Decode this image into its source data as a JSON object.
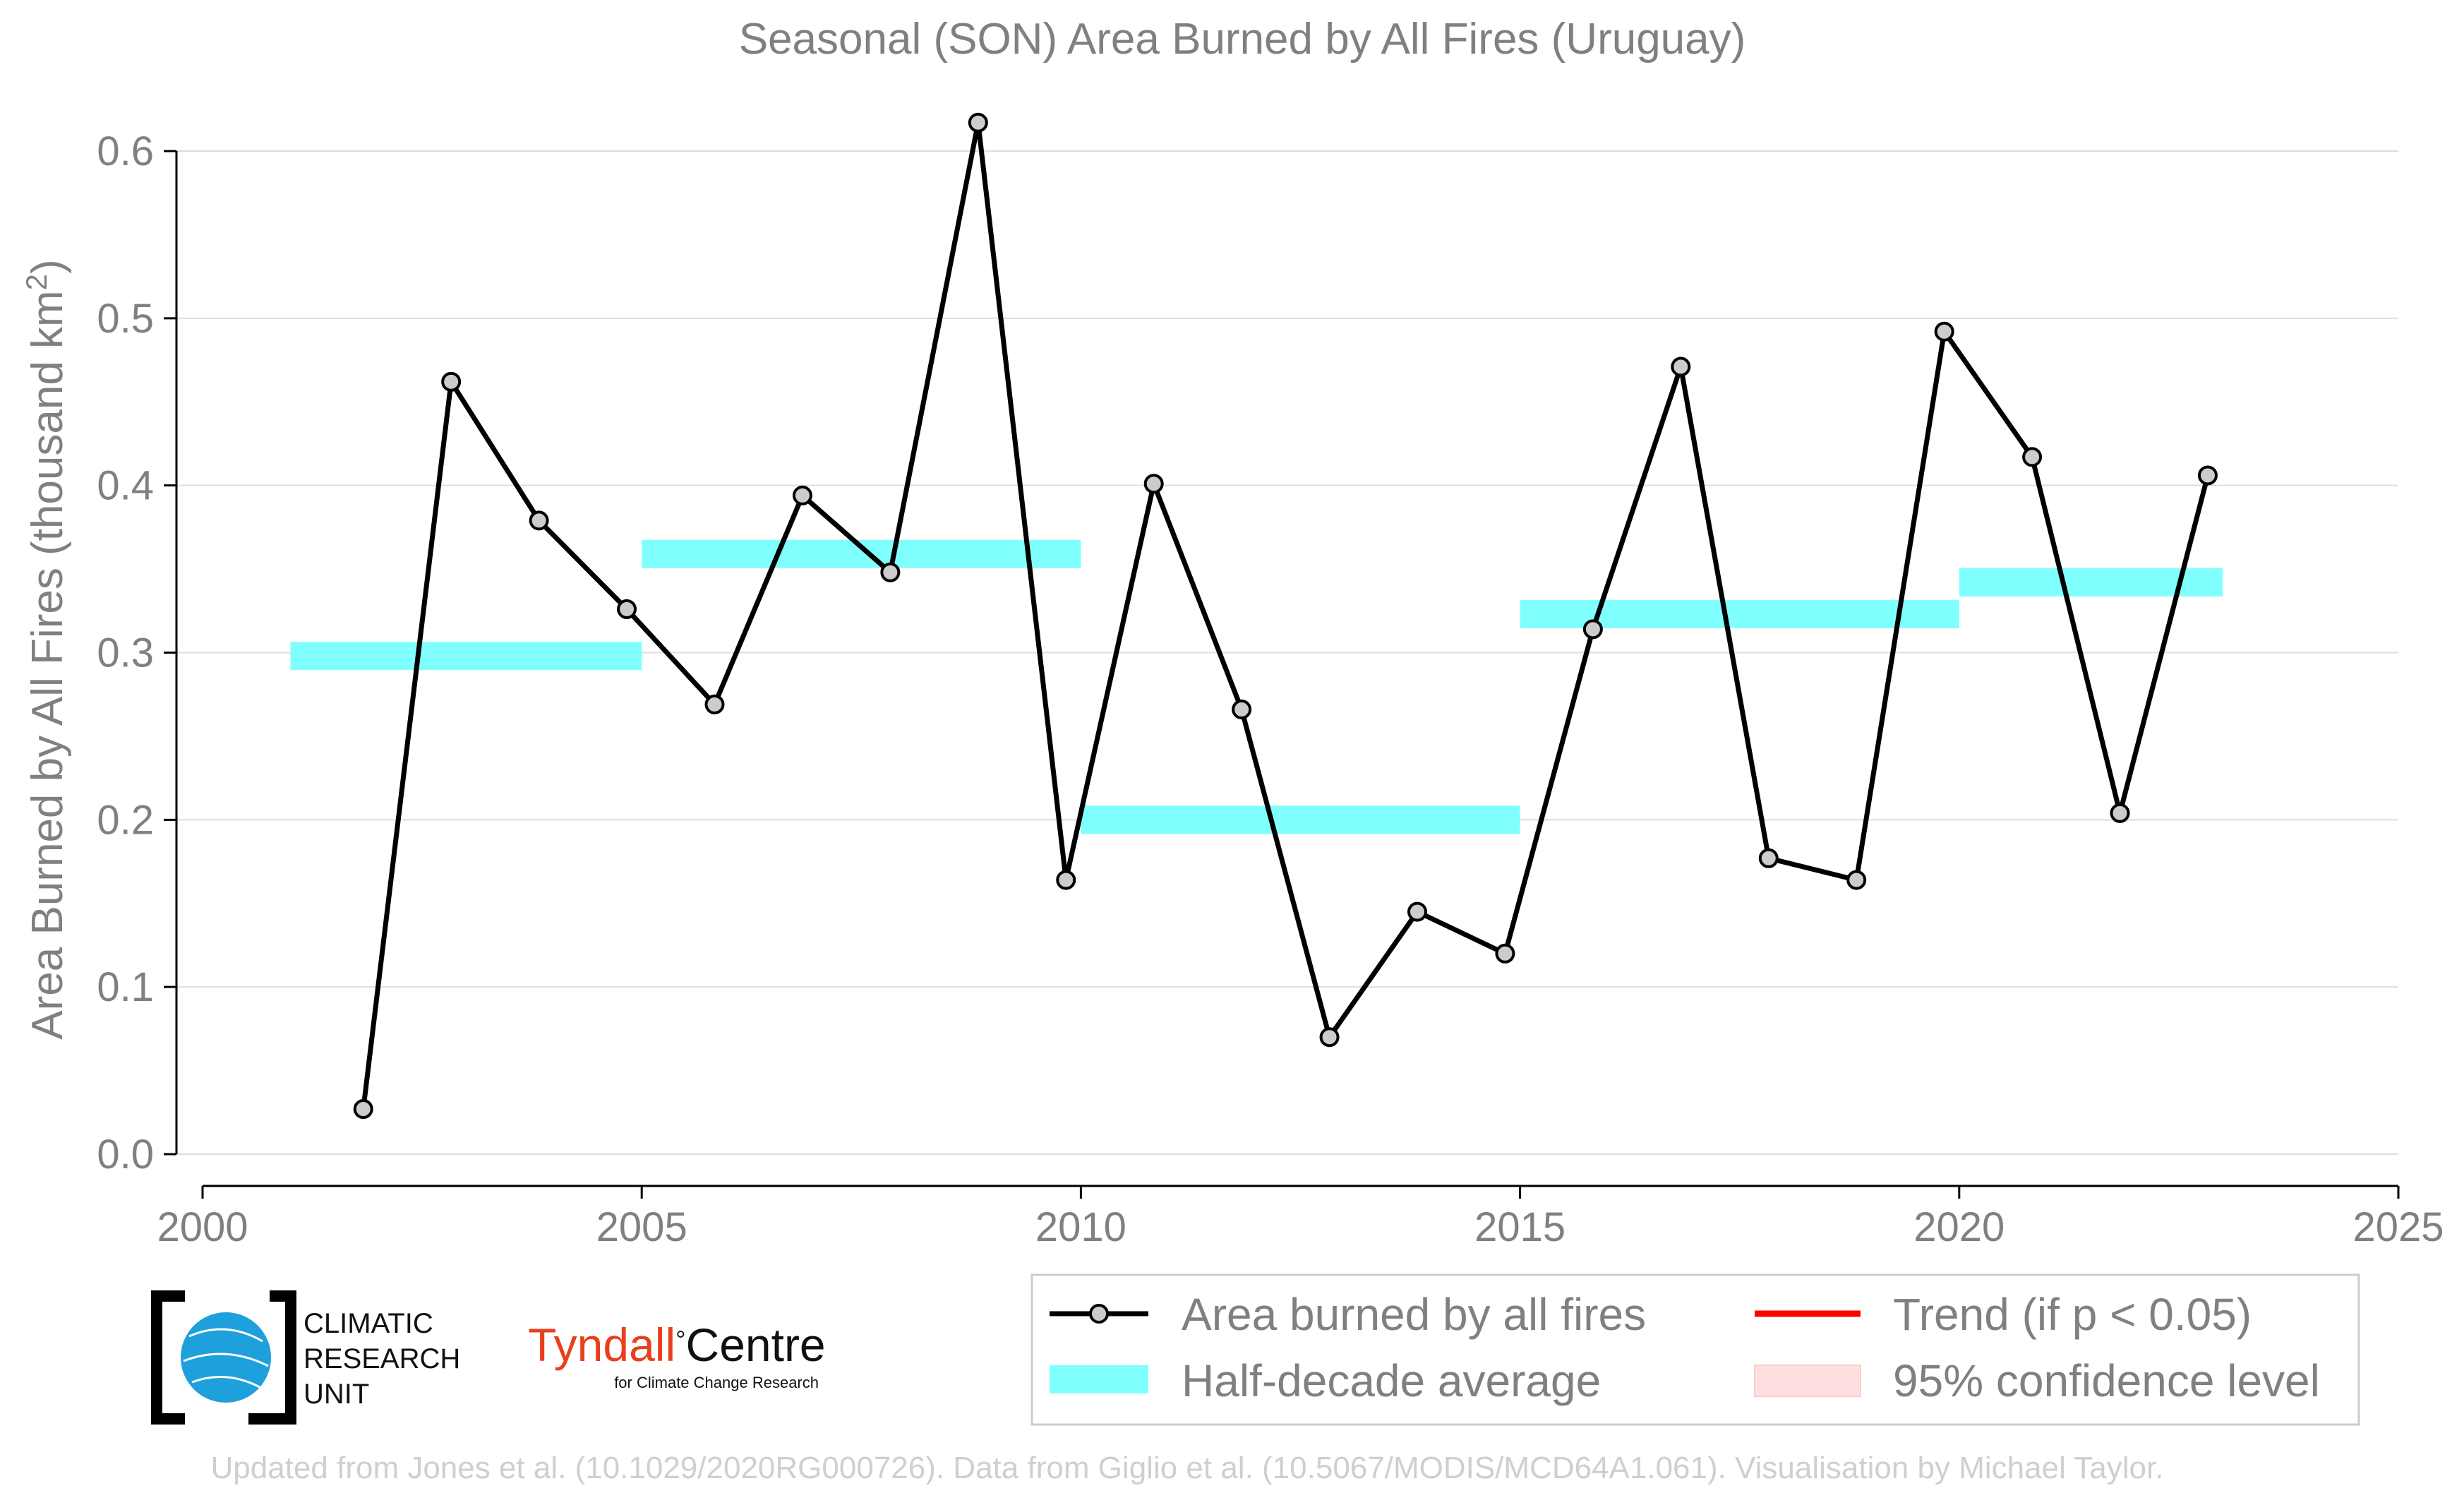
{
  "chart_data": {
    "type": "line",
    "title": "Seasonal (SON) Area Burned by All Fires (Uruguay)",
    "ylabel": "Area Burned by All Fires (thousand km",
    "ylabel_sup": "2",
    "ylabel_close": ")",
    "xlim": [
      2000,
      2025
    ],
    "ylim": [
      -0.03,
      0.64
    ],
    "x_ticks": [
      2000,
      2005,
      2010,
      2015,
      2020,
      2025
    ],
    "x_tick_labels": [
      "2000",
      "2005",
      "2010",
      "2015",
      "2020",
      "2025"
    ],
    "y_ticks": [
      0.0,
      0.1,
      0.2,
      0.3,
      0.4,
      0.5,
      0.6
    ],
    "y_tick_labels": [
      "0.0",
      "0.1",
      "0.2",
      "0.3",
      "0.4",
      "0.5",
      "0.6"
    ],
    "grid": "horizontal",
    "series": [
      {
        "name": "Area burned by all fires",
        "color": "#000000",
        "marker_fill": "#cccccc",
        "x": [
          2001.83,
          2002.83,
          2003.83,
          2004.83,
          2005.83,
          2006.83,
          2007.83,
          2008.83,
          2009.83,
          2010.83,
          2011.83,
          2012.83,
          2013.83,
          2014.83,
          2015.83,
          2016.83,
          2017.83,
          2018.83,
          2019.83,
          2020.83,
          2021.83,
          2022.83
        ],
        "y": [
          0.027,
          0.462,
          0.379,
          0.326,
          0.269,
          0.394,
          0.348,
          0.617,
          0.164,
          0.401,
          0.266,
          0.07,
          0.145,
          0.12,
          0.314,
          0.471,
          0.177,
          0.164,
          0.492,
          0.417,
          0.204,
          0.406
        ]
      }
    ],
    "half_decade_averages": {
      "name": "Half-decade average",
      "color": "#80ffff",
      "segments": [
        {
          "x_start": 2001,
          "x_end": 2005,
          "value": 0.298
        },
        {
          "x_start": 2005,
          "x_end": 2010,
          "value": 0.359
        },
        {
          "x_start": 2010,
          "x_end": 2015,
          "value": 0.2
        },
        {
          "x_start": 2015,
          "x_end": 2020,
          "value": 0.323
        },
        {
          "x_start": 2020,
          "x_end": 2023,
          "value": 0.342
        }
      ]
    },
    "trend": {
      "name": "Trend (if p < 0.05)",
      "color": "#ff0000"
    },
    "confidence": {
      "name": "95% confidence level",
      "color": "#ffe0e0"
    },
    "legend": {
      "placement": "bottom-right",
      "items": [
        "Area burned by all fires",
        "Trend (if p < 0.05)",
        "Half-decade average",
        "95% confidence level"
      ]
    }
  },
  "logos": {
    "cru_line1": "CLIMATIC",
    "cru_line2": "RESEARCH",
    "cru_line3": "UNIT",
    "tyndall_name": "Tyndall",
    "tyndall_degree": "°",
    "tyndall_centre": "Centre",
    "tyndall_sub": "for Climate Change Research"
  },
  "footer": "Updated from Jones et al. (10.1029/2020RG000726). Data from Giglio et al. (10.5067/MODIS/MCD64A1.061). Visualisation by Michael Taylor."
}
